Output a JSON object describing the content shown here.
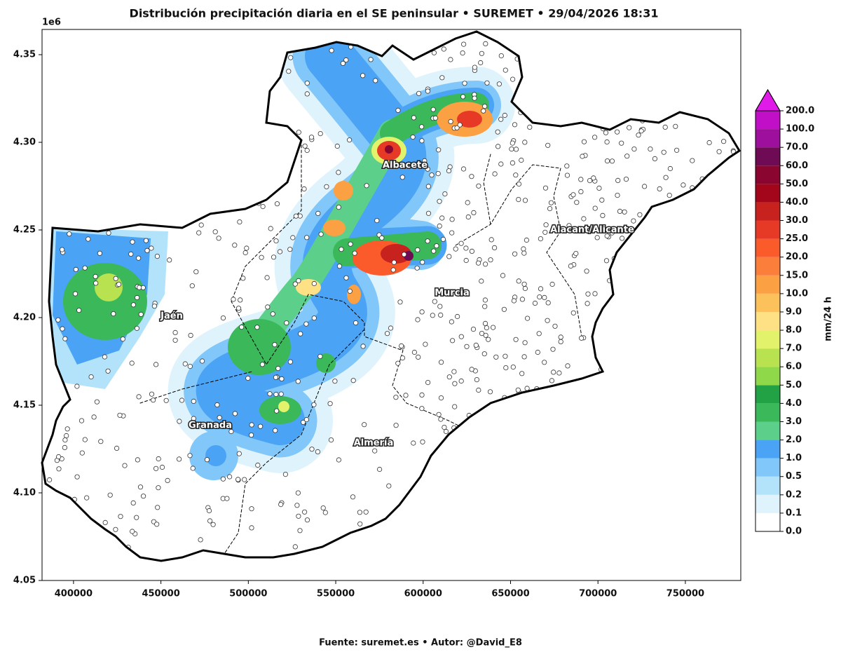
{
  "header": {
    "title": "Distribución precipitación diaria en el SE peninsular • SUREMET • 29/04/2026 18:31",
    "footer": "Fuente: suremet.es  •  Autor: @David_E8"
  },
  "map": {
    "xlim": [
      382000,
      781700
    ],
    "ylim": [
      4.05,
      4.3644
    ],
    "y_offset_label": "1e6",
    "xticks": [
      400000,
      450000,
      500000,
      550000,
      600000,
      650000,
      700000,
      750000
    ],
    "yticks": [
      4.05,
      {
        "value": 4.1,
        "label": "4.10"
      },
      4.15,
      {
        "value": 4.2,
        "label": "4.20"
      },
      4.25,
      {
        "value": 4.3,
        "label": "4.30"
      },
      4.35
    ],
    "labels": [
      "Albacete",
      "Jaén",
      "Granada",
      "Almería",
      "Murcia",
      "Alacant/Alicante"
    ]
  },
  "colorbar": {
    "label": "mm/24 h",
    "levels": [
      {
        "value": 0,
        "label": "0.0"
      },
      0.1,
      0.2,
      0.5,
      {
        "value": 1,
        "label": "1.0"
      },
      {
        "value": 2,
        "label": "2.0"
      },
      {
        "value": 3,
        "label": "3.0"
      },
      {
        "value": 4,
        "label": "4.0"
      },
      {
        "value": 5,
        "label": "5.0"
      },
      {
        "value": 6,
        "label": "6.0"
      },
      {
        "value": 7,
        "label": "7.0"
      },
      {
        "value": 8,
        "label": "8.0"
      },
      {
        "value": 9,
        "label": "9.0"
      },
      {
        "value": 10,
        "label": "10.0"
      },
      {
        "value": 15,
        "label": "15.0"
      },
      {
        "value": 20,
        "label": "20.0"
      },
      {
        "value": 25,
        "label": "25.0"
      },
      {
        "value": 30,
        "label": "30.0"
      },
      {
        "value": 40,
        "label": "40.0"
      },
      {
        "value": 50,
        "label": "50.0"
      },
      {
        "value": 60,
        "label": "60.0"
      },
      {
        "value": 70,
        "label": "70.0"
      },
      {
        "value": 100,
        "label": "100.0"
      },
      {
        "value": 200,
        "label": "200.0"
      }
    ],
    "colors": [
      "#ffffff",
      "#dff3fd",
      "#b3e3fb",
      "#81c7f9",
      "#4aa3f5",
      "#5cd08a",
      "#3ab85a",
      "#23a245",
      "#8ed84a",
      "#b8e250",
      "#e2f26a",
      "#fde184",
      "#fcc15a",
      "#fba043",
      "#fc7e3b",
      "#fb5a2b",
      "#e63a26",
      "#c7221e",
      "#a3061a",
      "#8a0630",
      "#6f0a55",
      "#9d0f9c",
      "#c10ec7"
    ],
    "extend_color": "#e01be8"
  }
}
